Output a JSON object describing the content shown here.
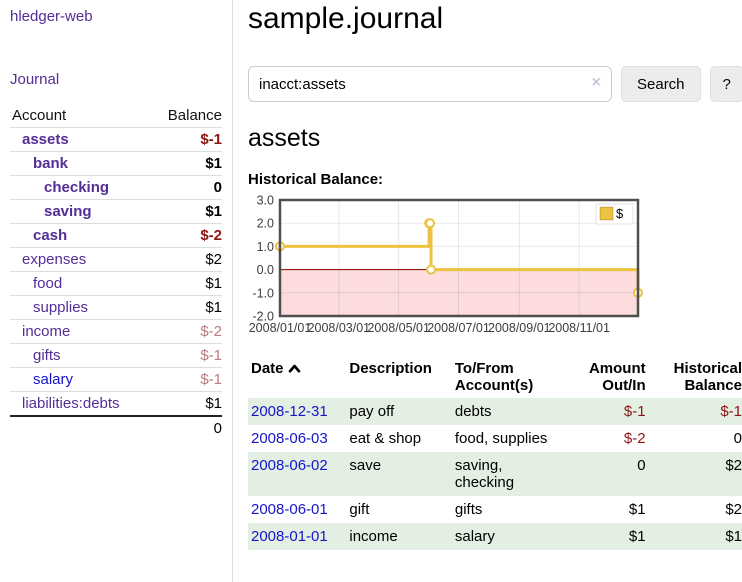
{
  "sidebar": {
    "app_title": "hledger-web",
    "journal_link": "Journal",
    "accounts": {
      "col_account": "Account",
      "col_balance": "Balance",
      "rows": [
        {
          "account": "assets",
          "balance": "$-1",
          "level": 1,
          "bold": true,
          "balance_class": "neg-strong"
        },
        {
          "account": "bank",
          "balance": "$1",
          "level": 2,
          "bold": true,
          "balance_class": ""
        },
        {
          "account": "checking",
          "balance": "0",
          "level": 3,
          "bold": true,
          "balance_class": ""
        },
        {
          "account": "saving",
          "balance": "$1",
          "level": 3,
          "bold": true,
          "balance_class": ""
        },
        {
          "account": "cash",
          "balance": "$-2",
          "level": 2,
          "bold": true,
          "balance_class": "neg-strong"
        },
        {
          "account": "expenses",
          "balance": "$2",
          "level": 1,
          "bold": false,
          "balance_class": ""
        },
        {
          "account": "food",
          "balance": "$1",
          "level": 2,
          "bold": false,
          "balance_class": ""
        },
        {
          "account": "supplies",
          "balance": "$1",
          "level": 2,
          "bold": false,
          "balance_class": ""
        },
        {
          "account": "income",
          "balance": "$-2",
          "level": 1,
          "bold": false,
          "balance_class": "neg-dim"
        },
        {
          "account": "gifts",
          "balance": "$-1",
          "level": 2,
          "bold": false,
          "balance_class": "neg-dim"
        },
        {
          "account": "salary",
          "balance": "$-1",
          "level": 2,
          "bold": false,
          "balance_class": "neg-dim",
          "link_class": "blue-link"
        },
        {
          "account": "liabilities:debts",
          "balance": "$1",
          "level": 1,
          "bold": false,
          "balance_class": ""
        }
      ],
      "total": "0"
    }
  },
  "header": {
    "title": "sample.journal"
  },
  "search": {
    "query": "inacct:assets",
    "clear_icon": "×",
    "search_button": "Search",
    "help_button": "?"
  },
  "account_page": {
    "heading": "assets",
    "chart_title": "Historical Balance:"
  },
  "chart_data": {
    "type": "line",
    "step": true,
    "series": [
      {
        "name": "$",
        "color": "#edc240",
        "points": [
          {
            "date": "2008-01-01",
            "value": 1
          },
          {
            "date": "2008-06-01",
            "value": 2
          },
          {
            "date": "2008-06-02",
            "value": 2
          },
          {
            "date": "2008-06-03",
            "value": 0
          },
          {
            "date": "2008-12-31",
            "value": -1
          }
        ]
      }
    ],
    "x_range": [
      "2008-01-01",
      "2008-12-31"
    ],
    "x_ticks": [
      "2008/01/01",
      "2008/03/01",
      "2008/05/01",
      "2008/07/01",
      "2008/09/01",
      "2008/11/01"
    ],
    "y_ticks": [
      "3.0",
      "2.0",
      "1.0",
      "0.0",
      "-1.0",
      "-2.0"
    ],
    "ylim": [
      -2,
      3
    ],
    "legend": {
      "label": "$",
      "position": "top-right"
    },
    "negative_fill": "#fcdcdc",
    "zero_line_color": "#8b0000",
    "grid": true
  },
  "register": {
    "headers": {
      "date": "Date",
      "description": "Description",
      "accounts": "To/From Account(s)",
      "amount": "Amount Out/In",
      "balance": "Historical Balance"
    },
    "rows": [
      {
        "date": "2008-12-31",
        "description": "pay off",
        "accounts": "debts",
        "amount": "$-1",
        "amount_class": "neg",
        "balance": "$-1",
        "balance_class": "neg"
      },
      {
        "date": "2008-06-03",
        "description": "eat & shop",
        "accounts": "food, supplies",
        "amount": "$-2",
        "amount_class": "neg",
        "balance": "0",
        "balance_class": ""
      },
      {
        "date": "2008-06-02",
        "description": "save",
        "accounts": "saving, checking",
        "amount": "0",
        "amount_class": "",
        "balance": "$2",
        "balance_class": ""
      },
      {
        "date": "2008-06-01",
        "description": "gift",
        "accounts": "gifts",
        "amount": "$1",
        "amount_class": "",
        "balance": "$2",
        "balance_class": ""
      },
      {
        "date": "2008-01-01",
        "description": "income",
        "accounts": "salary",
        "amount": "$1",
        "amount_class": "",
        "balance": "$1",
        "balance_class": ""
      }
    ]
  },
  "colors": {
    "link_purple": "#542d96",
    "link_blue": "#1515cc",
    "negative_strong": "#8e1414",
    "negative_dim": "#b97c7c",
    "row_green": "#e2efe2",
    "accent_gold": "#edc240",
    "chart_negative_fill": "#fcdcdc",
    "chart_zero_line": "#8b0000"
  }
}
